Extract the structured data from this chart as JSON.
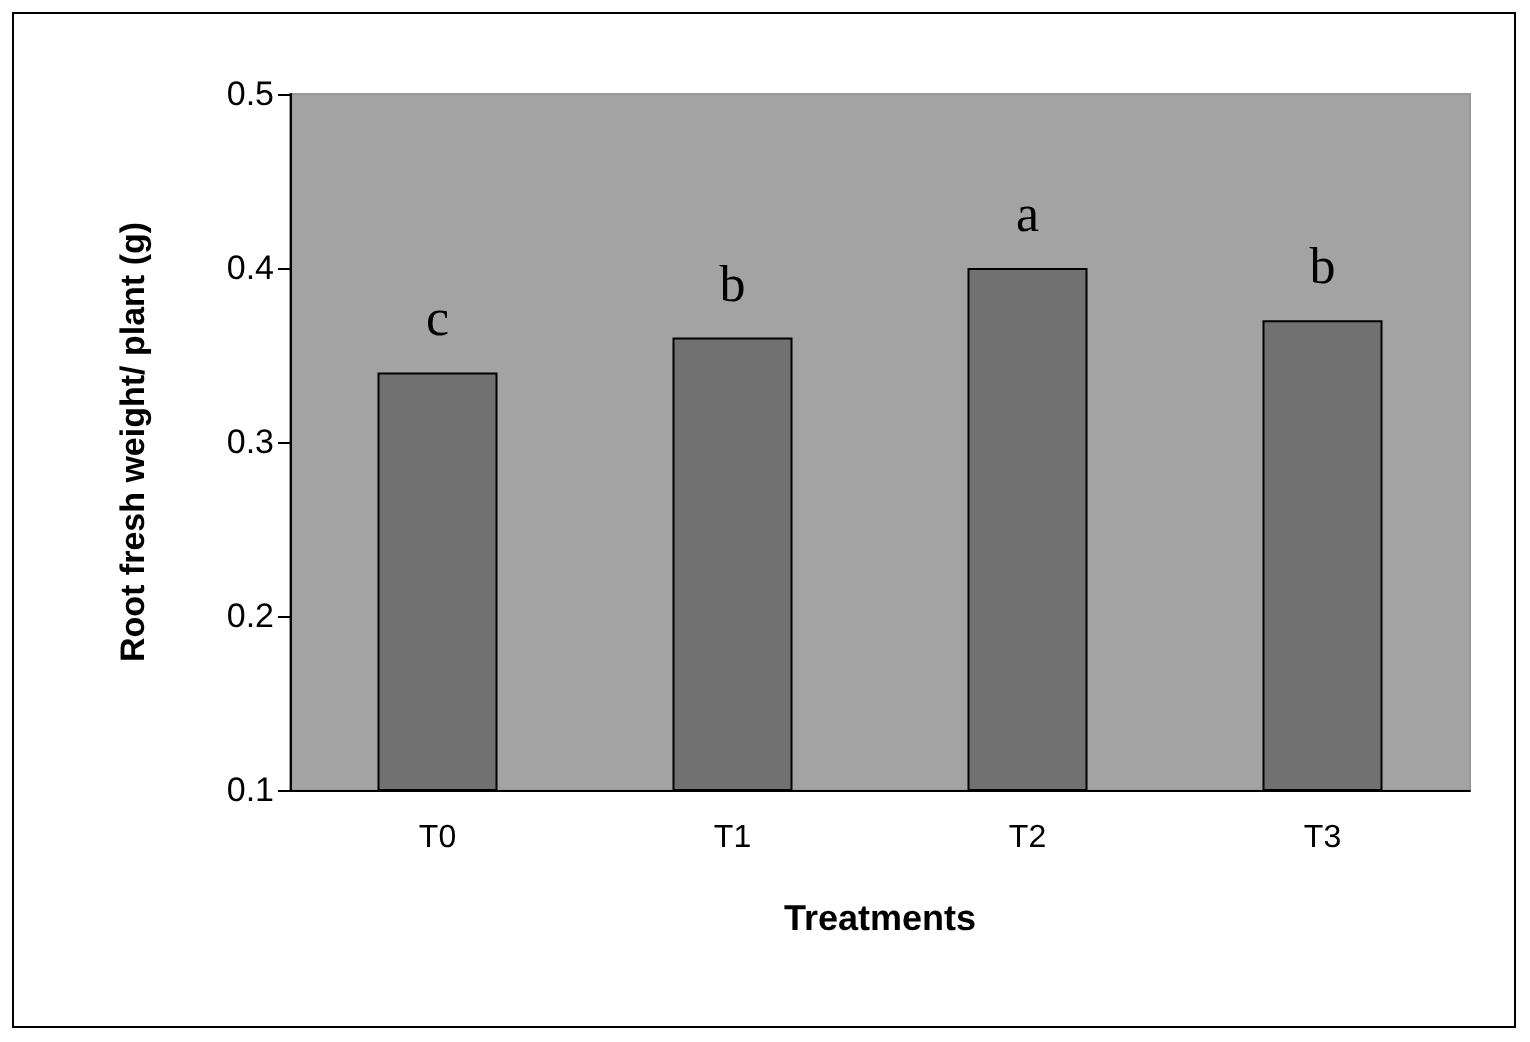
{
  "chart_data": {
    "type": "bar",
    "xlabel": "Treatments",
    "ylabel": "Root fresh weight/ plant (g)",
    "categories": [
      "T0",
      "T1",
      "T2",
      "T3"
    ],
    "values": [
      0.34,
      0.36,
      0.4,
      0.37
    ],
    "color": "#717171",
    "ylim": [
      0.1,
      0.5
    ],
    "yticks": [
      0.1,
      0.2,
      0.3,
      0.4,
      0.5
    ],
    "grid": false,
    "value_labels": [
      "c",
      "b",
      "a",
      "b"
    ]
  }
}
